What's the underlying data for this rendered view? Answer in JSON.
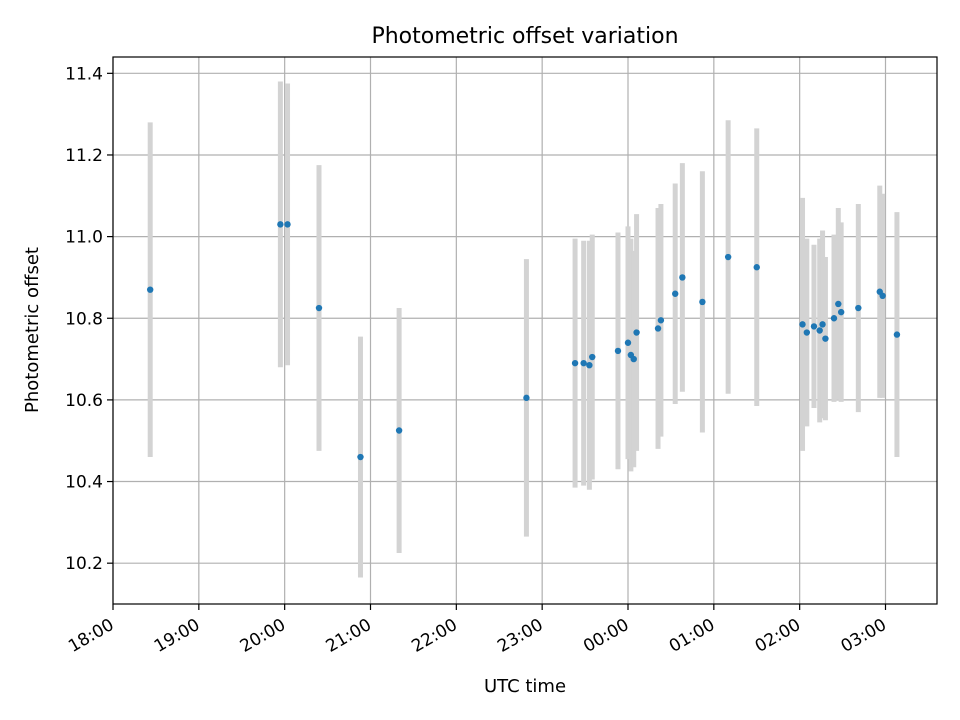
{
  "chart_data": {
    "type": "scatter",
    "title": "Photometric offset variation",
    "xlabel": "UTC time",
    "ylabel": "Photometric offset",
    "x_tick_labels": [
      "18:00",
      "19:00",
      "20:00",
      "21:00",
      "22:00",
      "23:00",
      "00:00",
      "01:00",
      "02:00",
      "03:00"
    ],
    "y_tick_labels": [
      "10.2",
      "10.4",
      "10.6",
      "10.8",
      "11.0",
      "11.2",
      "11.4"
    ],
    "xlim_hours": [
      18.0,
      27.6
    ],
    "ylim": [
      10.1,
      11.44
    ],
    "grid": true,
    "point_color": "#1f77b4",
    "errorbar_color": "#d3d3d3",
    "series": [
      {
        "x": [
          "18:26",
          "19:57",
          "20:02",
          "20:24",
          "20:53",
          "21:20",
          "22:49",
          "23:23",
          "23:29",
          "23:33",
          "23:35",
          "23:53",
          "24:00",
          "24:02",
          "24:04",
          "24:06",
          "24:21",
          "24:23",
          "24:33",
          "24:38",
          "24:52",
          "25:10",
          "25:30",
          "26:02",
          "26:05",
          "26:10",
          "26:14",
          "26:16",
          "26:18",
          "26:24",
          "26:27",
          "26:29",
          "26:41",
          "26:56",
          "26:58",
          "27:08"
        ],
        "y": [
          10.87,
          11.03,
          11.03,
          10.825,
          10.46,
          10.525,
          10.605,
          10.69,
          10.69,
          10.685,
          10.705,
          10.72,
          10.74,
          10.71,
          10.7,
          10.765,
          10.775,
          10.795,
          10.86,
          10.9,
          10.84,
          10.95,
          10.925,
          10.785,
          10.765,
          10.78,
          10.77,
          10.785,
          10.75,
          10.8,
          10.835,
          10.815,
          10.825,
          10.865,
          10.855,
          10.76
        ],
        "yerr": [
          0.41,
          0.35,
          0.345,
          0.35,
          0.295,
          0.3,
          0.34,
          0.305,
          0.3,
          0.305,
          0.3,
          0.29,
          0.285,
          0.285,
          0.265,
          0.29,
          0.295,
          0.285,
          0.27,
          0.28,
          0.32,
          0.335,
          0.34,
          0.31,
          0.23,
          0.2,
          0.225,
          0.23,
          0.2,
          0.205,
          0.235,
          0.22,
          0.255,
          0.26,
          0.25,
          0.3
        ]
      }
    ]
  }
}
